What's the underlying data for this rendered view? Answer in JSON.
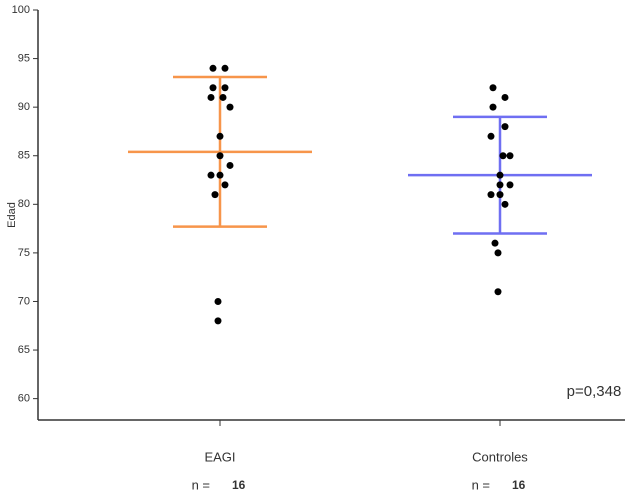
{
  "chart_data": {
    "type": "dot_plot",
    "y_label": "Edad",
    "ylim": [
      57.8,
      100
    ],
    "yticks": [
      60,
      65,
      70,
      75,
      80,
      85,
      90,
      95,
      100
    ],
    "n_label": "n =",
    "annotation": "p=0,348",
    "point_color": "#000000",
    "series": [
      {
        "name": "EAGI",
        "color": "#f7954a",
        "n": 16,
        "mean": 85.4,
        "sd": 7.7,
        "values": [
          94,
          94,
          92,
          92,
          91,
          91,
          90,
          87,
          85,
          84,
          83,
          83,
          82,
          81,
          70,
          68
        ]
      },
      {
        "name": "Controles",
        "color": "#6f6ff2",
        "n": 16,
        "mean": 83,
        "sd": 6,
        "values": [
          92,
          91,
          90,
          88,
          87,
          85,
          85,
          83,
          82,
          82,
          81,
          81,
          80,
          76,
          75,
          71
        ]
      }
    ]
  }
}
